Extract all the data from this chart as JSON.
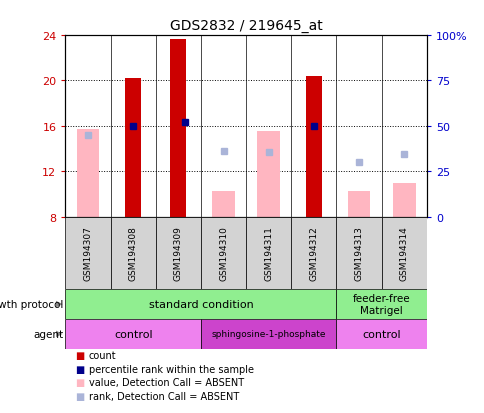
{
  "title": "GDS2832 / 219645_at",
  "samples": [
    "GSM194307",
    "GSM194308",
    "GSM194309",
    "GSM194310",
    "GSM194311",
    "GSM194312",
    "GSM194313",
    "GSM194314"
  ],
  "ylim_left": [
    8,
    24
  ],
  "ylim_right": [
    0,
    100
  ],
  "yticks_left": [
    8,
    12,
    16,
    20,
    24
  ],
  "yticks_right": [
    0,
    25,
    50,
    75,
    100
  ],
  "ytick_labels_right": [
    "0",
    "25",
    "50",
    "75",
    "100%"
  ],
  "red_bars": [
    null,
    20.2,
    23.6,
    null,
    null,
    20.4,
    null,
    null
  ],
  "pink_bars_top": [
    15.7,
    null,
    null,
    10.3,
    15.5,
    null,
    10.3,
    11.0
  ],
  "blue_squares_y": [
    null,
    16.0,
    16.3,
    null,
    null,
    16.0,
    null,
    null
  ],
  "blue_squares_x_offset": [
    0,
    0,
    0.15,
    0,
    0,
    0,
    0,
    0
  ],
  "light_blue_squares_y": [
    15.2,
    null,
    null,
    13.8,
    13.7,
    null,
    12.8,
    13.5
  ],
  "bar_color": "#cc0000",
  "pink_color": "#ffb6c1",
  "blue_sq_color": "#00008b",
  "light_blue_color": "#aab4d8",
  "bg_color": "#ffffff",
  "left_tick_color": "#cc0000",
  "right_tick_color": "#0000cc",
  "gp_groups": [
    {
      "label": "standard condition",
      "cols": [
        0,
        1,
        2,
        3,
        4,
        5
      ],
      "color": "#90ee90"
    },
    {
      "label": "feeder-free\nMatrigel",
      "cols": [
        6,
        7
      ],
      "color": "#90ee90"
    }
  ],
  "ag_groups": [
    {
      "label": "control",
      "cols": [
        0,
        1,
        2
      ],
      "color": "#ee82ee"
    },
    {
      "label": "sphingosine-1-phosphate",
      "cols": [
        3,
        4,
        5
      ],
      "color": "#cc44cc"
    },
    {
      "label": "control",
      "cols": [
        6,
        7
      ],
      "color": "#ee82ee"
    }
  ],
  "legend_items": [
    {
      "color": "#cc0000",
      "label": "count"
    },
    {
      "color": "#00008b",
      "label": "percentile rank within the sample"
    },
    {
      "color": "#ffb6c1",
      "label": "value, Detection Call = ABSENT"
    },
    {
      "color": "#aab4d8",
      "label": "rank, Detection Call = ABSENT"
    }
  ]
}
